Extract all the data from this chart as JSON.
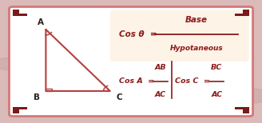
{
  "bg_color": "#dbbaba",
  "card_color": "#ffffff",
  "card_border_color": "#d47878",
  "corner_color": "#7a1a1a",
  "formula_bg": "#fdf3e7",
  "main_text_color": "#8b1a1a",
  "triangle_color": "#b54040",
  "label_color": "#222222",
  "vertex_A": [
    0.175,
    0.76
  ],
  "vertex_B": [
    0.175,
    0.26
  ],
  "vertex_C": [
    0.42,
    0.26
  ],
  "fig_width": 3.28,
  "fig_height": 1.54,
  "dpi": 100
}
